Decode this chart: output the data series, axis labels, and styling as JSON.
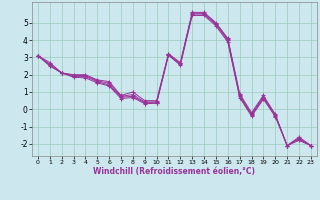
{
  "xlabel": "Windchill (Refroidissement éolien,°C)",
  "background_color": "#cce8ee",
  "grid_color": "#99ccbb",
  "line_color": "#993399",
  "xlim": [
    -0.5,
    23.5
  ],
  "ylim": [
    -2.7,
    6.2
  ],
  "xticks": [
    0,
    1,
    2,
    3,
    4,
    5,
    6,
    7,
    8,
    9,
    10,
    11,
    12,
    13,
    14,
    15,
    16,
    17,
    18,
    19,
    20,
    21,
    22,
    23
  ],
  "yticks": [
    -2,
    -1,
    0,
    1,
    2,
    3,
    4,
    5
  ],
  "series": [
    [
      3.1,
      2.7,
      2.1,
      2.0,
      2.0,
      1.7,
      1.6,
      0.8,
      1.0,
      0.5,
      0.5,
      3.2,
      2.7,
      5.6,
      5.6,
      5.0,
      4.1,
      0.9,
      -0.2,
      0.8,
      -0.3,
      -2.1,
      -1.6,
      -2.1
    ],
    [
      3.1,
      2.6,
      2.1,
      1.95,
      1.95,
      1.65,
      1.5,
      0.75,
      0.85,
      0.42,
      0.43,
      3.2,
      2.65,
      5.55,
      5.55,
      4.95,
      4.05,
      0.82,
      -0.28,
      0.72,
      -0.32,
      -2.1,
      -1.68,
      -2.1
    ],
    [
      3.1,
      2.55,
      2.1,
      1.9,
      1.9,
      1.6,
      1.4,
      0.7,
      0.75,
      0.38,
      0.38,
      3.15,
      2.6,
      5.5,
      5.5,
      4.9,
      3.98,
      0.75,
      -0.33,
      0.65,
      -0.37,
      -2.1,
      -1.73,
      -2.1
    ],
    [
      3.1,
      2.5,
      2.1,
      1.85,
      1.82,
      1.52,
      1.35,
      0.62,
      0.68,
      0.32,
      0.35,
      3.12,
      2.55,
      5.42,
      5.42,
      4.82,
      3.88,
      0.68,
      -0.4,
      0.58,
      -0.42,
      -2.1,
      -1.8,
      -2.1
    ]
  ]
}
